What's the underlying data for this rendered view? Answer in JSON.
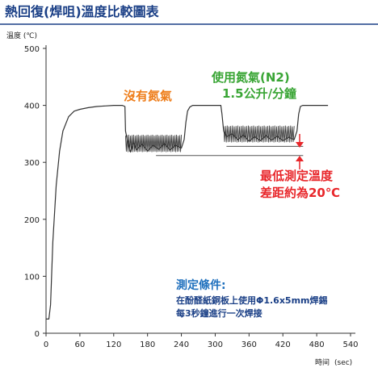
{
  "header": {
    "title": "熱回復(焊咀)溫度比較圖表"
  },
  "chart_data": {
    "type": "line",
    "title": "熱回復(焊咀)溫度比較圖表",
    "ylabel": "溫度 (℃)",
    "xlabel": "時间",
    "xunit": "(sec)",
    "xlim": [
      0,
      540
    ],
    "ylim": [
      0,
      500
    ],
    "xticks": [
      "0",
      "60",
      "120",
      "180",
      "240",
      "300",
      "360",
      "420",
      "480",
      "540"
    ],
    "yticks": [
      "0",
      "100",
      "200",
      "300",
      "400",
      "500"
    ],
    "grid": false,
    "legend": "none",
    "line_color": "#333333",
    "series": [
      {
        "x": [
          0,
          5,
          8,
          12,
          18,
          24,
          30,
          40,
          50,
          60,
          75,
          90,
          105,
          120,
          135,
          140,
          141,
          145,
          150,
          155,
          160,
          170,
          180,
          190,
          200,
          210,
          220,
          230,
          240,
          245,
          248,
          251,
          255,
          260,
          270,
          280,
          290,
          300,
          310,
          312,
          315,
          320,
          330,
          340,
          350,
          360,
          370,
          380,
          390,
          400,
          410,
          420,
          430,
          440,
          445,
          448,
          451,
          455,
          460,
          470,
          480,
          490,
          500
        ],
        "y": [
          25,
          25,
          50,
          160,
          260,
          320,
          355,
          380,
          390,
          393,
          396,
          398,
          399,
          400,
          400,
          398,
          355,
          335,
          318,
          335,
          322,
          332,
          320,
          330,
          323,
          333,
          322,
          330,
          325,
          340,
          370,
          390,
          397,
          400,
          400,
          400,
          400,
          400,
          400,
          385,
          355,
          345,
          350,
          340,
          348,
          337,
          345,
          338,
          347,
          339,
          346,
          338,
          344,
          340,
          355,
          385,
          398,
          400,
          400,
          400,
          400,
          400,
          400
        ]
      }
    ],
    "reference_lines": [
      {
        "y": 312,
        "x_start": 195,
        "x_end": 456
      },
      {
        "y": 328,
        "x_start": 320,
        "x_end": 456
      }
    ],
    "annotations": {
      "no_nitrogen": "沒有氮氣",
      "with_nitrogen_1": "使用氮氣(N2)",
      "with_nitrogen_2": "1.5公升/分鐘",
      "min_diff_1": "最低測定溫度",
      "min_diff_2": "差距約為20℃",
      "cond_title": "測定條件:",
      "cond_line1": "在酚醛紙銅板上使用Φ1.6x5mm焊錫",
      "cond_line2": "每3秒鐘進行一次焊接"
    },
    "colors": {
      "title": "#1a3f86",
      "no_nitrogen": "#ee7d1a",
      "with_nitrogen": "#39a535",
      "min_diff": "#e8262a",
      "conditions_title": "#1d6fbd",
      "conditions_text": "#1a3f86"
    }
  }
}
